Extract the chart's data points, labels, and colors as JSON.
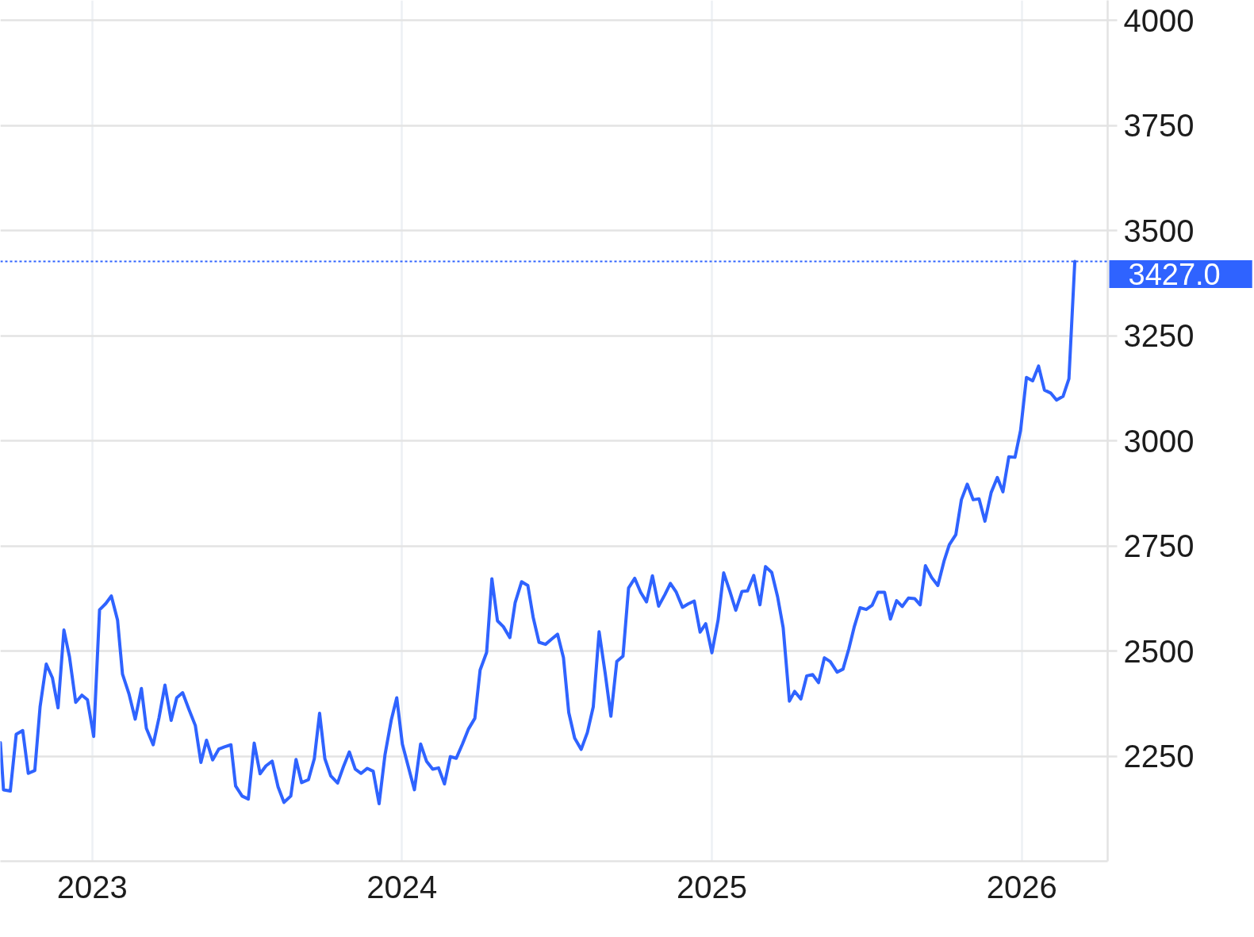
{
  "chart_data": {
    "type": "line",
    "x": [
      2022.704,
      2022.714,
      2022.736,
      2022.755,
      2022.776,
      2022.794,
      2022.815,
      2022.832,
      2022.852,
      2022.872,
      2022.89,
      2022.909,
      2022.927,
      2022.947,
      2022.967,
      2022.985,
      2023.005,
      2023.024,
      2023.044,
      2023.062,
      2023.082,
      2023.098,
      2023.119,
      2023.139,
      2023.159,
      2023.175,
      2023.197,
      2023.216,
      2023.235,
      2023.255,
      2023.273,
      2023.292,
      2023.312,
      2023.333,
      2023.351,
      2023.369,
      2023.389,
      2023.409,
      2023.427,
      2023.448,
      2023.463,
      2023.484,
      2023.504,
      2023.523,
      2023.542,
      2023.561,
      2023.581,
      2023.6,
      2023.619,
      2023.641,
      2023.658,
      2023.676,
      2023.698,
      2023.717,
      2023.734,
      2023.751,
      2023.77,
      2023.792,
      2023.811,
      2023.83,
      2023.849,
      2023.868,
      2023.888,
      2023.907,
      2023.926,
      2023.945,
      2023.965,
      2023.983,
      2024.001,
      2024.04,
      2024.06,
      2024.079,
      2024.099,
      2024.118,
      2024.137,
      2024.156,
      2024.175,
      2024.195,
      2024.214,
      2024.235,
      2024.252,
      2024.273,
      2024.29,
      2024.308,
      2024.327,
      2024.348,
      2024.365,
      2024.386,
      2024.406,
      2024.423,
      2024.442,
      2024.463,
      2024.482,
      2024.502,
      2024.521,
      2024.538,
      2024.557,
      2024.578,
      2024.598,
      2024.617,
      2024.636,
      2024.656,
      2024.674,
      2024.693,
      2024.713,
      2024.731,
      2024.751,
      2024.77,
      2024.789,
      2024.808,
      2024.828,
      2024.848,
      2024.866,
      2024.885,
      2024.905,
      2024.923,
      2024.943,
      2024.962,
      2024.98,
      2025.0,
      2025.02,
      2025.038,
      2025.058,
      2025.077,
      2025.097,
      2025.115,
      2025.135,
      2025.155,
      2025.173,
      2025.193,
      2025.212,
      2025.23,
      2025.25,
      2025.267,
      2025.287,
      2025.306,
      2025.325,
      2025.344,
      2025.363,
      2025.382,
      2025.404,
      2025.423,
      2025.442,
      2025.459,
      2025.478,
      2025.498,
      2025.517,
      2025.536,
      2025.557,
      2025.576,
      2025.596,
      2025.614,
      2025.634,
      2025.654,
      2025.672,
      2025.689,
      2025.709,
      2025.729,
      2025.749,
      2025.766,
      2025.787,
      2025.805,
      2025.824,
      2025.843,
      2025.862,
      2025.881,
      2025.901,
      2025.921,
      2025.939,
      2025.958,
      2025.978,
      2025.996,
      2026.015,
      2026.035,
      2026.054,
      2026.073,
      2026.093,
      2026.112,
      2026.133,
      2026.152,
      2026.171
    ],
    "series": [
      {
        "color": "#2f63ff",
        "values": [
          2282,
          2170,
          2167,
          2302,
          2311,
          2209,
          2216,
          2367,
          2469,
          2436,
          2365,
          2550,
          2486,
          2378,
          2395,
          2384,
          2297,
          2598,
          2613,
          2631,
          2574,
          2445,
          2398,
          2338,
          2411,
          2316,
          2277,
          2342,
          2419,
          2335,
          2389,
          2401,
          2362,
          2323,
          2235,
          2288,
          2241,
          2267,
          2272,
          2277,
          2179,
          2155,
          2148,
          2281,
          2208,
          2227,
          2238,
          2177,
          2140,
          2155,
          2242,
          2187,
          2194,
          2244,
          2352,
          2244,
          2203,
          2186,
          2225,
          2260,
          2219,
          2209,
          2221,
          2214,
          2137,
          2253,
          2335,
          2389,
          2279,
          2170,
          2279,
          2238,
          2219,
          2222,
          2184,
          2249,
          2245,
          2279,
          2314,
          2340,
          2455,
          2497,
          2672,
          2572,
          2558,
          2532,
          2615,
          2665,
          2656,
          2581,
          2521,
          2516,
          2528,
          2540,
          2484,
          2354,
          2293,
          2266,
          2306,
          2367,
          2546,
          2445,
          2345,
          2475,
          2488,
          2650,
          2673,
          2640,
          2617,
          2679,
          2607,
          2634,
          2661,
          2640,
          2604,
          2612,
          2619,
          2545,
          2565,
          2496,
          2574,
          2686,
          2642,
          2597,
          2642,
          2643,
          2680,
          2610,
          2701,
          2687,
          2629,
          2555,
          2381,
          2404,
          2386,
          2441,
          2444,
          2425,
          2484,
          2475,
          2450,
          2457,
          2506,
          2557,
          2603,
          2599,
          2609,
          2640,
          2640,
          2576,
          2620,
          2606,
          2626,
          2625,
          2610,
          2703,
          2675,
          2656,
          2714,
          2753,
          2777,
          2860,
          2897,
          2860,
          2862,
          2809,
          2877,
          2913,
          2879,
          2962,
          2961,
          3025,
          3151,
          3143,
          3178,
          3121,
          3114,
          3097,
          3106,
          3148,
          3427
        ]
      }
    ],
    "xlim": [
      2022.704,
      2026.277
    ],
    "ylim": [
      2000,
      4048
    ],
    "xticks": [
      2023,
      2024,
      2025,
      2026
    ],
    "yticks": [
      2250,
      2500,
      2750,
      3000,
      3250,
      3500,
      3750,
      4000
    ],
    "grid": true,
    "line_style": "solid",
    "ref_lines": [
      {
        "axis": "y",
        "value": 3427,
        "label": "3427.0",
        "color": "#2f63ff",
        "line_style": "dotted"
      }
    ]
  }
}
